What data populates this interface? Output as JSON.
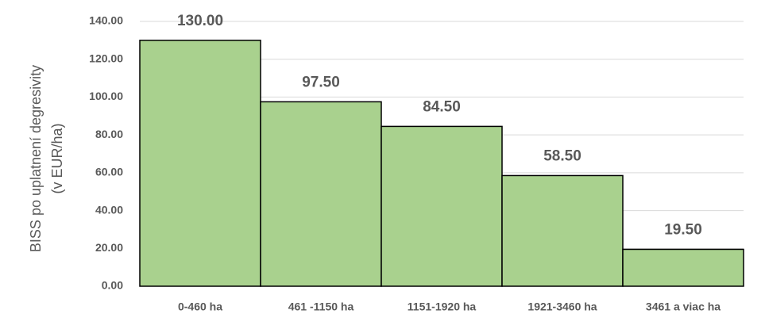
{
  "chart_data": {
    "type": "bar",
    "y_label": [
      "BISS po uplatnení degresivity",
      "(v EUR/ha)"
    ],
    "categories": [
      "0-460 ha",
      "461 -1150 ha",
      "1151-1920 ha",
      "1921-3460 ha",
      "3461 a viac ha"
    ],
    "values": [
      130,
      97.5,
      84.5,
      58.5,
      19.5
    ],
    "value_labels": [
      "130.00",
      "97.50",
      "84.50",
      "58.50",
      "19.50"
    ],
    "color": "#a9d18e",
    "ylim": [
      0,
      140
    ],
    "yticks": [
      {
        "value": 0,
        "label": "0.00"
      },
      {
        "value": 20,
        "label": "20.00"
      },
      {
        "value": 40,
        "label": "40.00"
      },
      {
        "value": 60,
        "label": "60.00"
      },
      {
        "value": 80,
        "label": "80.00"
      },
      {
        "value": 100,
        "label": "100.00"
      },
      {
        "value": 120,
        "label": "120.00"
      },
      {
        "value": 140,
        "label": "140.00"
      }
    ],
    "grid": true
  }
}
